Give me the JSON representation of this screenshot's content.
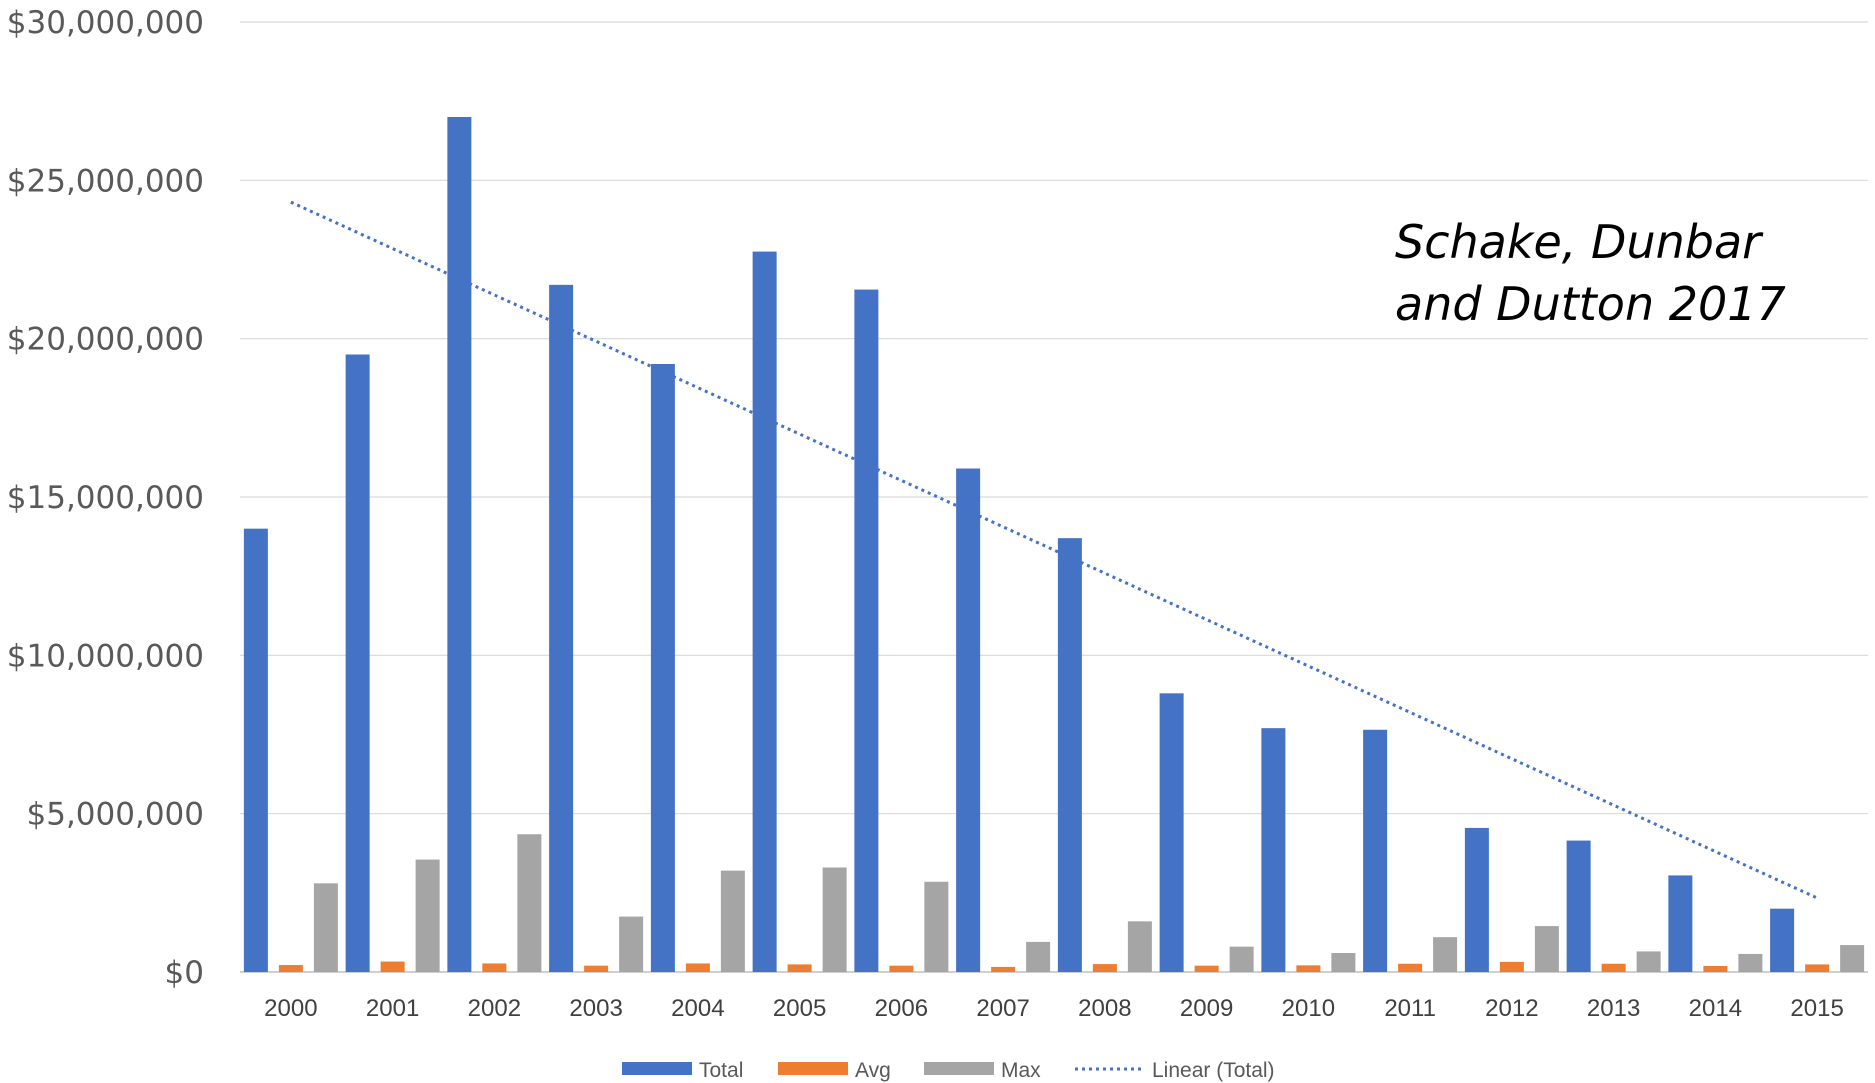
{
  "chart_data": {
    "type": "bar",
    "categories": [
      "2000",
      "2001",
      "2002",
      "2003",
      "2004",
      "2005",
      "2006",
      "2007",
      "2008",
      "2009",
      "2010",
      "2011",
      "2012",
      "2013",
      "2014",
      "2015"
    ],
    "series": [
      {
        "name": "Total",
        "color": "#4472C4",
        "values": [
          14000000,
          19500000,
          27000000,
          21700000,
          19200000,
          22750000,
          21550000,
          15900000,
          13700000,
          8800000,
          7700000,
          7650000,
          4550000,
          4150000,
          3050000,
          2000000
        ]
      },
      {
        "name": "Avg",
        "color": "#ED7D31",
        "values": [
          220000,
          330000,
          270000,
          200000,
          270000,
          240000,
          200000,
          160000,
          250000,
          200000,
          210000,
          260000,
          320000,
          260000,
          190000,
          240000
        ]
      },
      {
        "name": "Max",
        "color": "#A5A5A5",
        "values": [
          2800000,
          3550000,
          4350000,
          1750000,
          3200000,
          3300000,
          2850000,
          950000,
          1600000,
          800000,
          600000,
          1100000,
          1450000,
          650000,
          570000,
          850000
        ]
      }
    ],
    "trendline": {
      "name": "Linear  (Total)",
      "of_series": "Total",
      "type": "linear",
      "color": "#4472C4",
      "style": "dotted"
    },
    "ylim": [
      0,
      30000000
    ],
    "yticks": [
      0,
      5000000,
      10000000,
      15000000,
      20000000,
      25000000,
      30000000
    ],
    "ytick_labels": [
      "$0",
      "$5,000,000",
      "$10,000,000",
      "$15,000,000",
      "$20,000,000",
      "$25,000,000",
      "$30,000,000"
    ],
    "grid": true,
    "legend_position": "bottom",
    "title": "",
    "xlabel": "",
    "ylabel": "",
    "annotation": [
      "Schake, Dunbar",
      "and Dutton 2017"
    ]
  }
}
